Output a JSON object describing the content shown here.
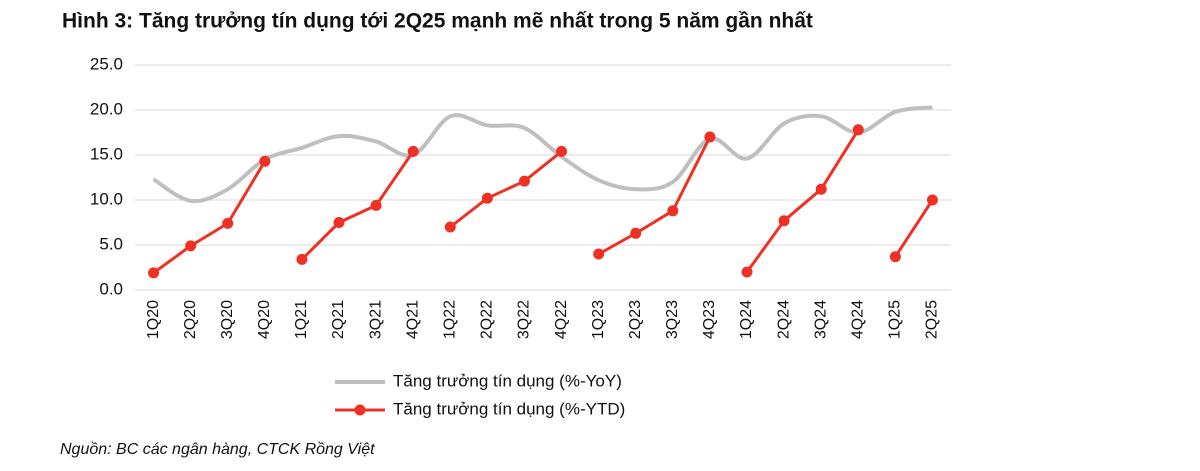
{
  "chart_data": {
    "type": "line",
    "title": "Hình 3: Tăng trưởng tín dụng tới 2Q25 mạnh mẽ nhất trong 5 năm gần nhất",
    "categories": [
      "1Q20",
      "2Q20",
      "3Q20",
      "4Q20",
      "1Q21",
      "2Q21",
      "3Q21",
      "4Q21",
      "1Q22",
      "2Q22",
      "3Q22",
      "4Q22",
      "1Q23",
      "2Q23",
      "3Q23",
      "4Q23",
      "1Q24",
      "2Q24",
      "3Q24",
      "4Q24",
      "1Q25",
      "2Q25"
    ],
    "series": [
      {
        "name": "Tăng trưởng tín dụng (%-YoY)",
        "color": "#bfbfbf",
        "smooth": true,
        "markers": false,
        "values": [
          12.3,
          9.9,
          11.2,
          14.5,
          15.8,
          17.1,
          16.5,
          15.0,
          19.3,
          18.3,
          18.0,
          14.8,
          12.2,
          11.2,
          12.0,
          16.8,
          14.6,
          18.5,
          19.3,
          17.5,
          19.8,
          20.3
        ]
      },
      {
        "name": "Tăng trưởng tín dụng (%-YTD)",
        "color": "#ee3124",
        "smooth": false,
        "markers": true,
        "yearly_pieces": true,
        "values": [
          1.9,
          4.9,
          7.4,
          14.3,
          3.4,
          7.5,
          9.4,
          15.4,
          7.0,
          10.2,
          12.1,
          15.4,
          4.0,
          6.3,
          8.8,
          17.0,
          2.0,
          7.7,
          11.2,
          17.8,
          3.7,
          10.0
        ]
      }
    ],
    "ylim": [
      0,
      25
    ],
    "yticks": [
      {
        "value": 0,
        "label": "0.0"
      },
      {
        "value": 5,
        "label": "5.0"
      },
      {
        "value": 10,
        "label": "10.0"
      },
      {
        "value": 15,
        "label": "15.0"
      },
      {
        "value": 20,
        "label": "20.0"
      },
      {
        "value": 25,
        "label": "25.0"
      }
    ],
    "grid": true,
    "source": "Nguồn: BC các ngân hàng, CTCK Rồng Việt"
  }
}
